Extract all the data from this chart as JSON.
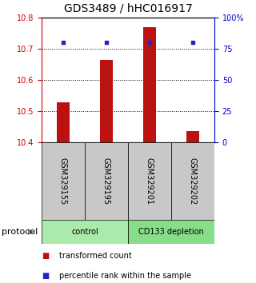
{
  "title": "GDS3489 / hHC016917",
  "categories": [
    "GSM329155",
    "GSM329195",
    "GSM329201",
    "GSM329202"
  ],
  "bar_values": [
    10.528,
    10.665,
    10.768,
    10.435
  ],
  "bar_base": 10.4,
  "blue_values": [
    80.0,
    80.0,
    80.0,
    80.0
  ],
  "ylim_left": [
    10.4,
    10.8
  ],
  "ylim_right": [
    0,
    100
  ],
  "yticks_left": [
    10.4,
    10.5,
    10.6,
    10.7,
    10.8
  ],
  "yticks_right": [
    0,
    25,
    50,
    75,
    100
  ],
  "ytick_labels_right": [
    "0",
    "25",
    "50",
    "75",
    "100%"
  ],
  "bar_color": "#bb1111",
  "blue_color": "#2222cc",
  "bg_labels": "#c8c8c8",
  "bg_control": "#aaeaaa",
  "bg_cd133": "#88dd88",
  "label_fontsize": 7,
  "title_fontsize": 10,
  "protocol_groups": [
    {
      "label": "control",
      "cols": [
        0,
        1
      ]
    },
    {
      "label": "CD133 depletion",
      "cols": [
        2,
        3
      ]
    }
  ],
  "legend_items": [
    {
      "color": "#bb1111",
      "label": "transformed count"
    },
    {
      "color": "#2222cc",
      "label": "percentile rank within the sample"
    }
  ],
  "protocol_label": "protocol",
  "left_tick_color": "#cc0000",
  "right_tick_color": "#0000cc",
  "bar_width": 0.3
}
